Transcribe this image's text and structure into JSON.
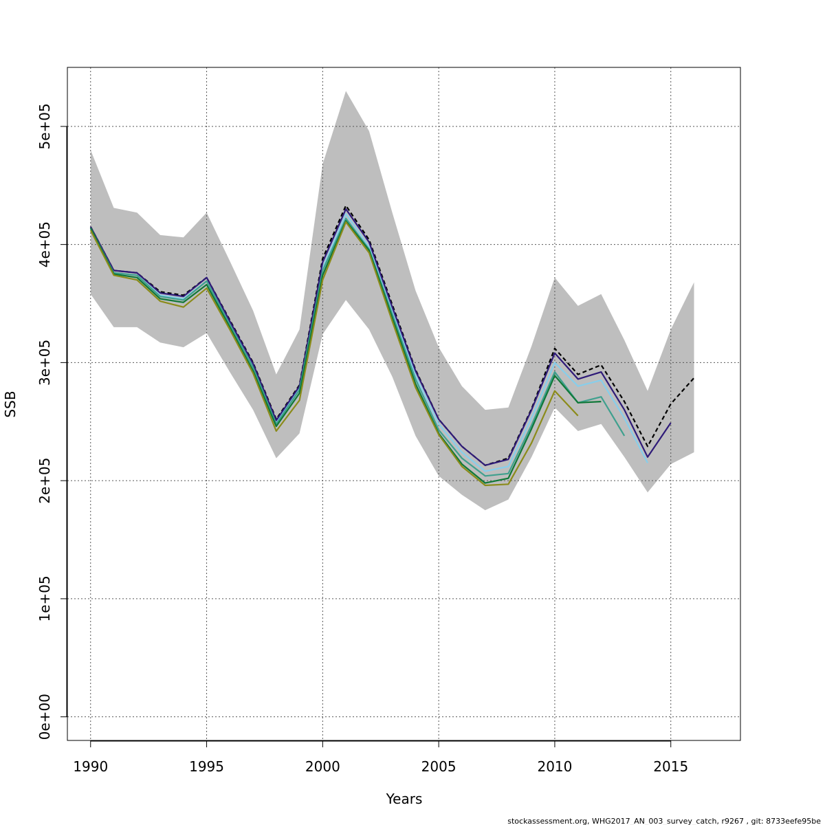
{
  "chart_data": {
    "type": "line",
    "xlabel": "Years",
    "ylabel": "SSB",
    "xlim": [
      1989,
      2018
    ],
    "ylim": [
      -20000,
      550000
    ],
    "x_ticks": [
      1990,
      1995,
      2000,
      2005,
      2010,
      2015
    ],
    "x_tick_labels": [
      "1990",
      "1995",
      "2000",
      "2005",
      "2010",
      "2015"
    ],
    "y_ticks": [
      0,
      100000,
      200000,
      300000,
      400000,
      500000
    ],
    "y_tick_labels": [
      "0e+00",
      "1e+05",
      "2e+05",
      "3e+05",
      "4e+05",
      "5e+05"
    ],
    "grid": true,
    "confidence_band": {
      "color": "#bebebe",
      "x": [
        1990,
        1991,
        1992,
        1993,
        1994,
        1995,
        1996,
        1997,
        1998,
        1999,
        2000,
        2001,
        2002,
        2003,
        2004,
        2005,
        2006,
        2007,
        2008,
        2009,
        2010,
        2011,
        2012,
        2013,
        2014,
        2015,
        2016
      ],
      "upper": [
        480000,
        431000,
        427000,
        408000,
        406000,
        427000,
        386000,
        344000,
        290000,
        328000,
        468000,
        530000,
        496000,
        427000,
        361000,
        313000,
        280000,
        260000,
        262000,
        314000,
        372000,
        348000,
        358000,
        319000,
        276000,
        328000,
        368000
      ],
      "lower": [
        358000,
        330000,
        330000,
        317000,
        313000,
        325000,
        292000,
        260000,
        219000,
        240000,
        324000,
        353000,
        328000,
        288000,
        238000,
        204000,
        188000,
        175000,
        184000,
        220000,
        262000,
        242000,
        248000,
        220000,
        190000,
        214000,
        224000
      ]
    },
    "series": [
      {
        "color": "#000000",
        "dash": "6,4",
        "x": [
          1990,
          1991,
          1992,
          1993,
          1994,
          1995,
          1996,
          1997,
          1998,
          1999,
          2000,
          2001,
          2002,
          2003,
          2004,
          2005,
          2006,
          2007,
          2008,
          2009,
          2010,
          2011,
          2012,
          2013,
          2014,
          2015,
          2016
        ],
        "values": [
          415000,
          378000,
          376000,
          360000,
          357000,
          372000,
          336000,
          300000,
          252000,
          281000,
          388000,
          433000,
          404000,
          349000,
          294000,
          252000,
          229000,
          213000,
          219000,
          261000,
          312000,
          290000,
          298000,
          267000,
          229000,
          265000,
          287000
        ]
      },
      {
        "color": "#87ceeb",
        "dash": "",
        "x": [
          1990,
          1991,
          1992,
          1993,
          1994,
          1995,
          1996,
          1997,
          1998,
          1999,
          2000,
          2001,
          2002,
          2003,
          2004,
          2005,
          2006,
          2007,
          2008,
          2009,
          2010,
          2011,
          2012,
          2013,
          2014
        ],
        "values": [
          413000,
          376000,
          374000,
          357000,
          354000,
          369000,
          333000,
          297000,
          250000,
          278000,
          380000,
          426000,
          398000,
          343000,
          289000,
          248000,
          224000,
          208000,
          212000,
          253000,
          300000,
          280000,
          285000,
          253000,
          215000
        ]
      },
      {
        "color": "#2e1a78",
        "dash": "",
        "x": [
          1990,
          1991,
          1992,
          1993,
          1994,
          1995,
          1996,
          1997,
          1998,
          1999,
          2000,
          2001,
          2002,
          2003,
          2004,
          2005,
          2006,
          2007,
          2008,
          2009,
          2010,
          2011,
          2012,
          2013,
          2014,
          2015
        ],
        "values": [
          415000,
          378000,
          376000,
          359000,
          356000,
          372000,
          335000,
          299000,
          251000,
          280000,
          385000,
          430000,
          402000,
          347000,
          293000,
          252000,
          229000,
          213000,
          218000,
          260000,
          308000,
          286000,
          292000,
          260000,
          220000,
          249000
        ]
      },
      {
        "color": "#3fa08e",
        "dash": "",
        "x": [
          1990,
          1991,
          1992,
          1993,
          1994,
          1995,
          1996,
          1997,
          1998,
          1999,
          2000,
          2001,
          2002,
          2003,
          2004,
          2005,
          2006,
          2007,
          2008,
          2009,
          2010,
          2011,
          2012,
          2013
        ],
        "values": [
          414000,
          376000,
          374000,
          356000,
          353000,
          369000,
          332000,
          296000,
          248000,
          277000,
          378000,
          422000,
          396000,
          341000,
          286000,
          243000,
          219000,
          204000,
          206000,
          247000,
          292000,
          266000,
          271000,
          238000
        ]
      },
      {
        "color": "#0f7838",
        "dash": "",
        "x": [
          1990,
          1991,
          1992,
          1993,
          1994,
          1995,
          1996,
          1997,
          1998,
          1999,
          2000,
          2001,
          2002,
          2003,
          2004,
          2005,
          2006,
          2007,
          2008,
          2009,
          2010,
          2011,
          2012
        ],
        "values": [
          414000,
          375000,
          372000,
          354000,
          351000,
          366000,
          330000,
          293000,
          246000,
          274000,
          374000,
          420000,
          395000,
          338000,
          282000,
          240000,
          214000,
          198000,
          202000,
          244000,
          289000,
          266000,
          267000
        ]
      },
      {
        "color": "#8b8b1a",
        "dash": "",
        "x": [
          1990,
          1991,
          1992,
          1993,
          1994,
          1995,
          1996,
          1997,
          1998,
          1999,
          2000,
          2001,
          2002,
          2003,
          2004,
          2005,
          2006,
          2007,
          2008,
          2009,
          2010,
          2011
        ],
        "values": [
          412000,
          374000,
          370000,
          352000,
          347000,
          363000,
          328000,
          291000,
          242000,
          268000,
          370000,
          419000,
          393000,
          335000,
          279000,
          239000,
          212000,
          196000,
          197000,
          232000,
          276000,
          255000
        ]
      }
    ]
  },
  "footer_text": "stockassessment.org, WHG2017_AN_003_survey_catch, r9267 , git: 8733eefe95be"
}
